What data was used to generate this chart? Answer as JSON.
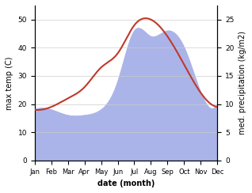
{
  "months": [
    "Jan",
    "Feb",
    "Mar",
    "Apr",
    "May",
    "Jun",
    "Jul",
    "Aug",
    "Sep",
    "Oct",
    "Nov",
    "Dec"
  ],
  "temperature": [
    18,
    19,
    22,
    26,
    33,
    38,
    48,
    50,
    44,
    34,
    24,
    19
  ],
  "precipitation": [
    9,
    9,
    8,
    8,
    9,
    14,
    23,
    22,
    23,
    20,
    12,
    10
  ],
  "temp_color": "#c0392b",
  "precip_color": "#aab4e8",
  "background_color": "#ffffff",
  "ylabel_left": "max temp (C)",
  "ylabel_right": "med. precipitation (kg/m2)",
  "xlabel": "date (month)",
  "ylim_left": [
    0,
    55
  ],
  "ylim_right": [
    0,
    27.5
  ],
  "yticks_left": [
    0,
    10,
    20,
    30,
    40,
    50
  ],
  "yticks_right": [
    0,
    5,
    10,
    15,
    20,
    25
  ]
}
